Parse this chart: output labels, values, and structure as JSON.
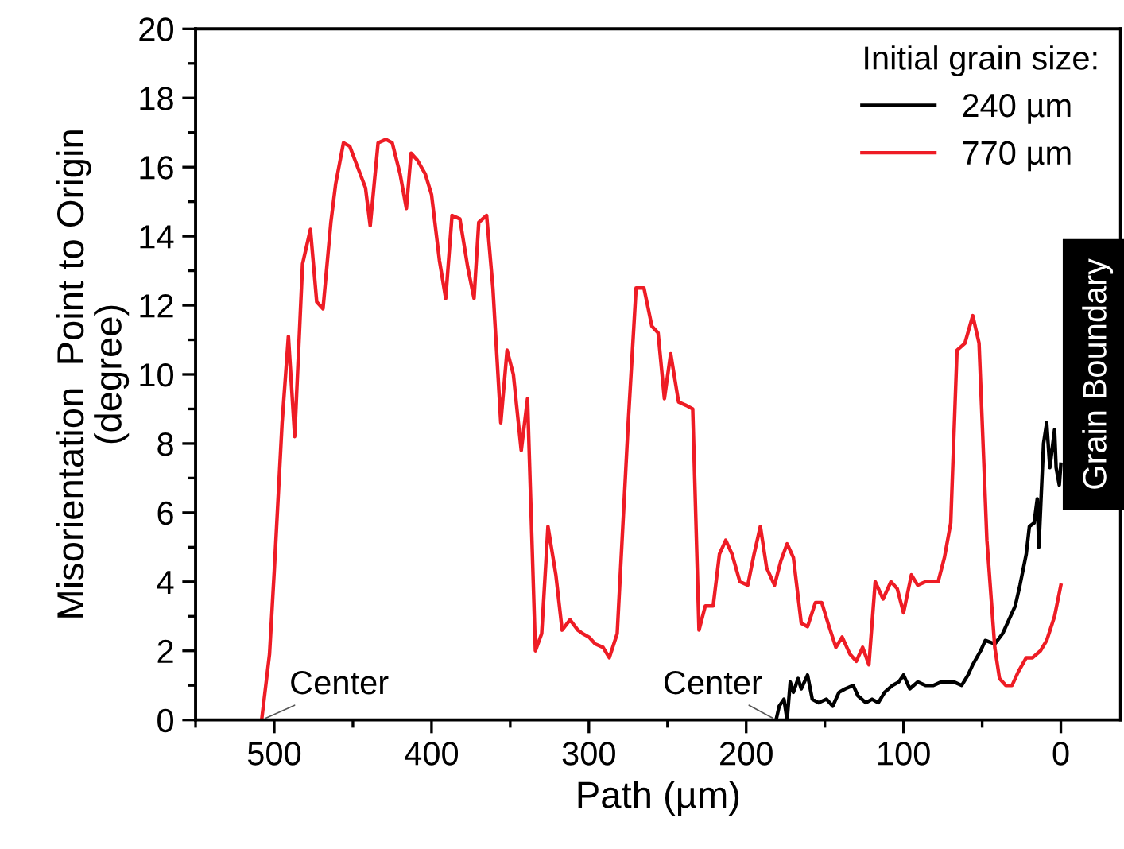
{
  "chart_data": {
    "type": "line",
    "xlabel": "Path (µm)",
    "ylabel": "Misorientation  Point to Origin\n(degree)",
    "legend_title": "Initial grain size:",
    "legend": "top right",
    "grid": false,
    "marker": "none",
    "line_style": "solid",
    "xlim": [
      550,
      -38
    ],
    "ylim": [
      0,
      20
    ],
    "xticks": [
      {
        "value": 550,
        "label": null
      },
      500,
      {
        "value": 450,
        "label": null
      },
      400,
      {
        "value": 350,
        "label": null
      },
      300,
      {
        "value": 250,
        "label": null
      },
      200,
      {
        "value": 150,
        "label": null
      },
      100,
      {
        "value": 50,
        "label": null
      },
      0
    ],
    "yticks": [
      0,
      {
        "value": 1,
        "label": null
      },
      2,
      {
        "value": 3,
        "label": null
      },
      4,
      {
        "value": 5,
        "label": null
      },
      6,
      {
        "value": 7,
        "label": null
      },
      8,
      {
        "value": 9,
        "label": null
      },
      10,
      {
        "value": 11,
        "label": null
      },
      12,
      {
        "value": 13,
        "label": null
      },
      14,
      {
        "value": 15,
        "label": null
      },
      16,
      {
        "value": 17,
        "label": null
      },
      18,
      {
        "value": 19,
        "label": null
      },
      20
    ],
    "series": [
      {
        "name": "240 µm",
        "color": "#000000",
        "x": [
          181,
          179,
          176,
          174,
          172,
          170,
          167,
          165,
          161,
          158,
          154,
          149,
          145,
          141,
          137,
          132,
          129,
          124,
          120,
          116,
          112,
          107,
          103,
          100,
          96,
          91,
          86,
          81,
          76,
          68,
          63,
          59,
          56,
          51,
          48,
          42,
          37,
          33,
          29,
          26,
          22,
          20,
          17,
          15,
          14,
          11,
          9,
          7,
          4,
          3,
          1,
          0
        ],
        "values": [
          0,
          0.4,
          0.6,
          0,
          1.1,
          0.8,
          1.2,
          0.9,
          1.3,
          0.6,
          0.5,
          0.6,
          0.4,
          0.8,
          0.9,
          1.0,
          0.7,
          0.5,
          0.6,
          0.5,
          0.8,
          1.0,
          1.1,
          1.3,
          0.9,
          1.1,
          1.0,
          1.0,
          1.1,
          1.1,
          1.0,
          1.3,
          1.6,
          2.0,
          2.3,
          2.2,
          2.5,
          2.9,
          3.3,
          3.9,
          4.8,
          5.6,
          5.7,
          6.4,
          5.0,
          8.0,
          8.6,
          7.3,
          8.4,
          7.3,
          6.8,
          7.4
        ]
      },
      {
        "name": "770 µm",
        "color": "#ee1c25",
        "x": [
          508,
          503,
          500,
          495,
          491,
          487,
          482,
          477,
          473,
          469,
          464,
          461,
          456,
          452,
          447,
          442,
          439,
          434,
          429,
          425,
          420,
          416,
          413,
          409,
          404,
          400,
          395,
          391,
          387,
          382,
          377,
          373,
          370,
          365,
          361,
          356,
          352,
          348,
          343,
          339,
          334,
          330,
          326,
          321,
          317,
          312,
          307,
          304,
          300,
          296,
          291,
          287,
          282,
          275,
          270,
          265,
          260,
          256,
          252,
          248,
          243,
          238,
          234,
          230,
          226,
          221,
          217,
          213,
          209,
          204,
          199,
          195,
          191,
          187,
          182,
          178,
          174,
          170,
          165,
          161,
          156,
          152,
          148,
          143,
          139,
          134,
          130,
          126,
          122,
          118,
          113,
          108,
          104,
          100,
          95,
          91,
          86,
          78,
          74,
          70,
          66,
          61,
          56,
          52,
          47,
          42,
          39,
          35,
          31,
          27,
          22,
          18,
          13,
          9,
          4,
          0
        ],
        "values": [
          0,
          1.9,
          4.3,
          8.6,
          11.1,
          8.2,
          13.2,
          14.2,
          12.1,
          11.9,
          14.4,
          15.5,
          16.7,
          16.6,
          16.0,
          15.4,
          14.3,
          16.7,
          16.8,
          16.7,
          15.8,
          14.8,
          16.4,
          16.2,
          15.8,
          15.2,
          13.3,
          12.2,
          14.6,
          14.5,
          13.1,
          12.2,
          14.4,
          14.6,
          12.5,
          8.6,
          10.7,
          10.0,
          7.8,
          9.3,
          2.0,
          2.5,
          5.6,
          4.2,
          2.6,
          2.9,
          2.6,
          2.5,
          2.4,
          2.2,
          2.1,
          1.8,
          2.5,
          8.6,
          12.5,
          12.5,
          11.4,
          11.2,
          9.3,
          10.6,
          9.2,
          9.1,
          9.0,
          2.6,
          3.3,
          3.3,
          4.8,
          5.2,
          4.8,
          4.0,
          3.9,
          4.8,
          5.6,
          4.4,
          3.9,
          4.6,
          5.1,
          4.7,
          2.8,
          2.7,
          3.4,
          3.4,
          2.8,
          2.1,
          2.4,
          1.9,
          1.7,
          2.1,
          1.6,
          4.0,
          3.5,
          4.0,
          3.8,
          3.1,
          4.2,
          3.9,
          4.0,
          4.0,
          4.7,
          5.7,
          10.7,
          10.9,
          11.7,
          10.9,
          5.2,
          2.1,
          1.2,
          1.0,
          1.0,
          1.4,
          1.8,
          1.8,
          2.0,
          2.3,
          3.0,
          3.9
        ]
      }
    ],
    "annotations": [
      {
        "text": "Center",
        "x": 508,
        "y": 0
      },
      {
        "text": "Center",
        "x": 181,
        "y": 0
      },
      "Grain Boundary"
    ]
  }
}
